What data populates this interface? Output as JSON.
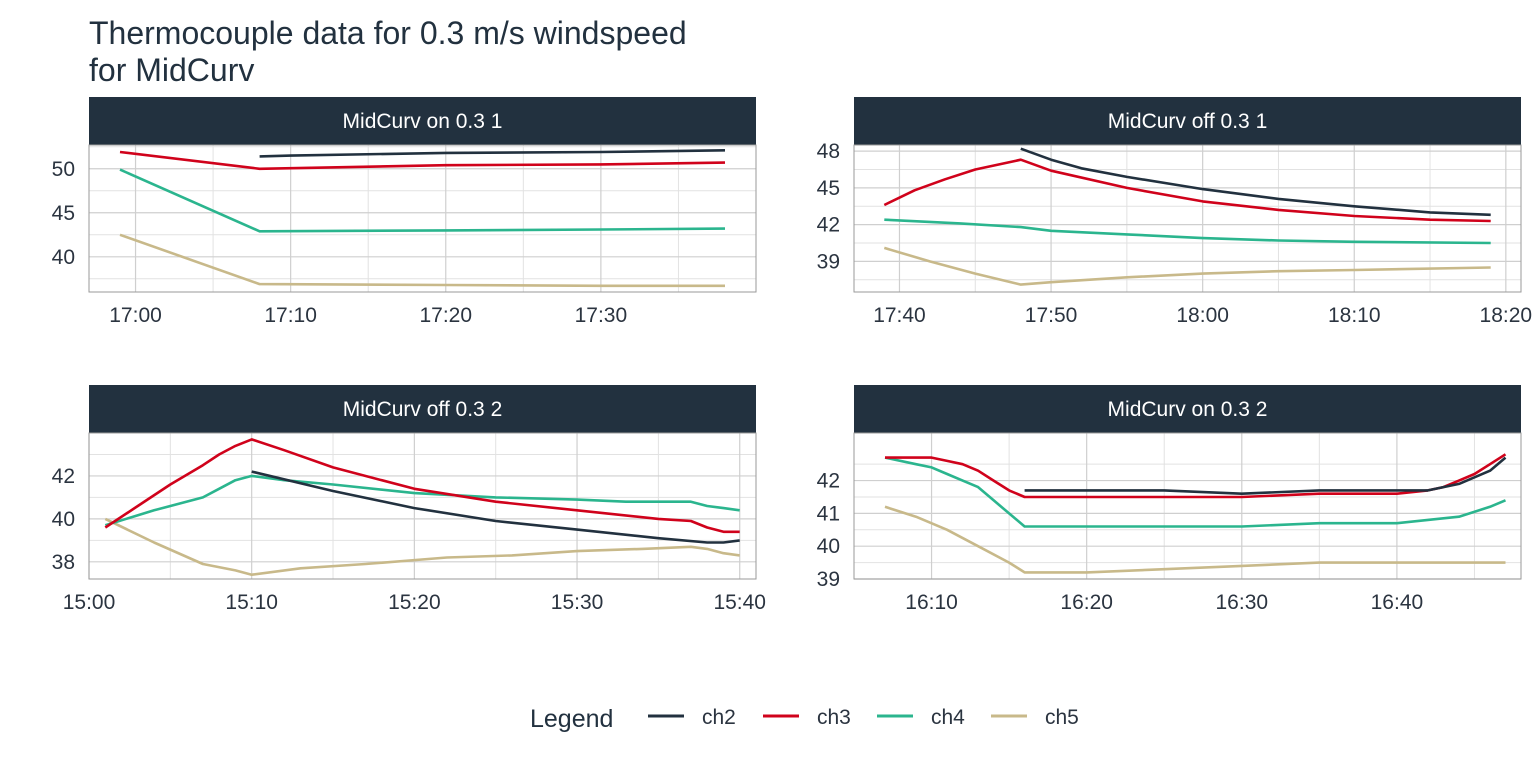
{
  "chart_data": {
    "type": "line",
    "title": "Thermocouple data for 0.3 m/s windspeed\nfor MidCurv",
    "series_colors": {
      "ch2": "#22313f",
      "ch3": "#d0021b",
      "ch4": "#2bb58e",
      "ch5": "#c8b98a"
    },
    "legend": {
      "title": "Legend",
      "placement": "bottom",
      "entries": [
        "ch2",
        "ch3",
        "ch4",
        "ch5"
      ]
    },
    "grid": true,
    "panels": [
      {
        "strip": "MidCurv on 0.3 1",
        "xlim": [
          "16:57",
          "17:40"
        ],
        "ylim": [
          36,
          52.7
        ],
        "xticks": [
          "17:00",
          "17:10",
          "17:20",
          "17:30"
        ],
        "yticks": [
          40,
          45,
          50
        ],
        "series": [
          {
            "name": "ch2",
            "x": [
              "17:08",
              "17:10",
              "17:20",
              "17:30",
              "17:38"
            ],
            "y": [
              51.4,
              51.5,
              51.8,
              51.9,
              52.1
            ]
          },
          {
            "name": "ch3",
            "x": [
              "16:59",
              "17:08",
              "17:20",
              "17:30",
              "17:38"
            ],
            "y": [
              51.9,
              50.0,
              50.4,
              50.5,
              50.7
            ]
          },
          {
            "name": "ch4",
            "x": [
              "16:59",
              "17:08",
              "17:20",
              "17:30",
              "17:38"
            ],
            "y": [
              49.9,
              42.9,
              43.0,
              43.1,
              43.2
            ]
          },
          {
            "name": "ch5",
            "x": [
              "16:59",
              "17:08",
              "17:20",
              "17:30",
              "17:38"
            ],
            "y": [
              42.5,
              36.9,
              36.8,
              36.7,
              36.7
            ]
          }
        ]
      },
      {
        "strip": "MidCurv off 0.3 1",
        "xlim": [
          "17:37",
          "18:21"
        ],
        "ylim": [
          36.5,
          48.5
        ],
        "xticks": [
          "17:40",
          "17:50",
          "18:00",
          "18:10",
          "18:20"
        ],
        "yticks": [
          39,
          42,
          45,
          48
        ],
        "series": [
          {
            "name": "ch2",
            "x": [
              "17:48",
              "17:50",
              "17:52",
              "17:55",
              "18:00",
              "18:05",
              "18:10",
              "18:15",
              "18:19"
            ],
            "y": [
              48.2,
              47.3,
              46.6,
              45.9,
              44.9,
              44.1,
              43.5,
              43.0,
              42.8
            ]
          },
          {
            "name": "ch3",
            "x": [
              "17:39",
              "17:41",
              "17:43",
              "17:45",
              "17:48",
              "17:50",
              "17:55",
              "18:00",
              "18:05",
              "18:10",
              "18:15",
              "18:19"
            ],
            "y": [
              43.6,
              44.8,
              45.7,
              46.5,
              47.3,
              46.4,
              45.0,
              43.9,
              43.2,
              42.7,
              42.4,
              42.3
            ]
          },
          {
            "name": "ch4",
            "x": [
              "17:39",
              "17:44",
              "17:48",
              "17:50",
              "17:55",
              "18:00",
              "18:05",
              "18:10",
              "18:19"
            ],
            "y": [
              42.4,
              42.1,
              41.8,
              41.5,
              41.2,
              40.9,
              40.7,
              40.6,
              40.5
            ]
          },
          {
            "name": "ch5",
            "x": [
              "17:39",
              "17:42",
              "17:45",
              "17:48",
              "17:50",
              "17:55",
              "18:00",
              "18:05",
              "18:10",
              "18:19"
            ],
            "y": [
              40.1,
              39.0,
              38.0,
              37.1,
              37.3,
              37.7,
              38.0,
              38.2,
              38.3,
              38.5
            ]
          }
        ]
      },
      {
        "strip": "MidCurv off 0.3 2",
        "xlim": [
          "15:00",
          "15:41"
        ],
        "ylim": [
          37.2,
          44.0
        ],
        "xticks": [
          "15:00",
          "15:10",
          "15:20",
          "15:30",
          "15:40"
        ],
        "yticks": [
          38,
          40,
          42
        ],
        "series": [
          {
            "name": "ch2",
            "x": [
              "15:10",
              "15:15",
              "15:20",
              "15:25",
              "15:30",
              "15:35",
              "15:38",
              "15:39",
              "15:40"
            ],
            "y": [
              42.2,
              41.3,
              40.5,
              39.9,
              39.5,
              39.1,
              38.9,
              38.9,
              39.0
            ]
          },
          {
            "name": "ch3",
            "x": [
              "15:01",
              "15:03",
              "15:05",
              "15:07",
              "15:08",
              "15:09",
              "15:10",
              "15:12",
              "15:15",
              "15:20",
              "15:25",
              "15:30",
              "15:35",
              "15:37",
              "15:38",
              "15:39",
              "15:40"
            ],
            "y": [
              39.6,
              40.6,
              41.6,
              42.5,
              43.0,
              43.4,
              43.7,
              43.2,
              42.4,
              41.4,
              40.8,
              40.4,
              40.0,
              39.9,
              39.6,
              39.4,
              39.4
            ]
          },
          {
            "name": "ch4",
            "x": [
              "15:01",
              "15:04",
              "15:07",
              "15:08",
              "15:09",
              "15:10",
              "15:12",
              "15:15",
              "15:20",
              "15:25",
              "15:30",
              "15:33",
              "15:37",
              "15:38",
              "15:39",
              "15:40"
            ],
            "y": [
              39.7,
              40.4,
              41.0,
              41.4,
              41.8,
              42.0,
              41.8,
              41.6,
              41.2,
              41.0,
              40.9,
              40.8,
              40.8,
              40.6,
              40.5,
              40.4
            ]
          },
          {
            "name": "ch5",
            "x": [
              "15:01",
              "15:04",
              "15:07",
              "15:09",
              "15:10",
              "15:13",
              "15:17",
              "15:22",
              "15:26",
              "15:30",
              "15:34",
              "15:37",
              "15:38",
              "15:39",
              "15:40"
            ],
            "y": [
              40.0,
              38.9,
              37.9,
              37.6,
              37.4,
              37.7,
              37.9,
              38.2,
              38.3,
              38.5,
              38.6,
              38.7,
              38.6,
              38.4,
              38.3
            ]
          }
        ]
      },
      {
        "strip": "MidCurv on 0.3 2",
        "xlim": [
          "16:05",
          "16:48"
        ],
        "ylim": [
          39.0,
          43.45
        ],
        "xticks": [
          "16:10",
          "16:20",
          "16:30",
          "16:40"
        ],
        "yticks": [
          39,
          40,
          41,
          42
        ],
        "series": [
          {
            "name": "ch2",
            "x": [
              "16:16",
              "16:20",
              "16:25",
              "16:30",
              "16:35",
              "16:40",
              "16:42",
              "16:44",
              "16:46",
              "16:47"
            ],
            "y": [
              41.7,
              41.7,
              41.7,
              41.6,
              41.7,
              41.7,
              41.7,
              41.9,
              42.3,
              42.7
            ]
          },
          {
            "name": "ch3",
            "x": [
              "16:07",
              "16:10",
              "16:11",
              "16:12",
              "16:13",
              "16:14",
              "16:15",
              "16:16",
              "16:20",
              "16:25",
              "16:30",
              "16:35",
              "16:40",
              "16:42",
              "16:43",
              "16:44",
              "16:45",
              "16:46",
              "16:47"
            ],
            "y": [
              42.7,
              42.7,
              42.6,
              42.5,
              42.3,
              42.0,
              41.7,
              41.5,
              41.5,
              41.5,
              41.5,
              41.6,
              41.6,
              41.7,
              41.8,
              42.0,
              42.2,
              42.5,
              42.8
            ]
          },
          {
            "name": "ch4",
            "x": [
              "16:07",
              "16:09",
              "16:10",
              "16:11",
              "16:12",
              "16:13",
              "16:14",
              "16:15",
              "16:16",
              "16:20",
              "16:25",
              "16:30",
              "16:35",
              "16:40",
              "16:42",
              "16:44",
              "16:46",
              "16:47"
            ],
            "y": [
              42.7,
              42.5,
              42.4,
              42.2,
              42.0,
              41.8,
              41.4,
              41.0,
              40.6,
              40.6,
              40.6,
              40.6,
              40.7,
              40.7,
              40.8,
              40.9,
              41.2,
              41.4
            ]
          },
          {
            "name": "ch5",
            "x": [
              "16:07",
              "16:09",
              "16:11",
              "16:13",
              "16:15",
              "16:16",
              "16:20",
              "16:25",
              "16:30",
              "16:35",
              "16:40",
              "16:47"
            ],
            "y": [
              41.2,
              40.9,
              40.5,
              40.0,
              39.5,
              39.2,
              39.2,
              39.3,
              39.4,
              39.5,
              39.5,
              39.5
            ]
          }
        ]
      }
    ]
  }
}
